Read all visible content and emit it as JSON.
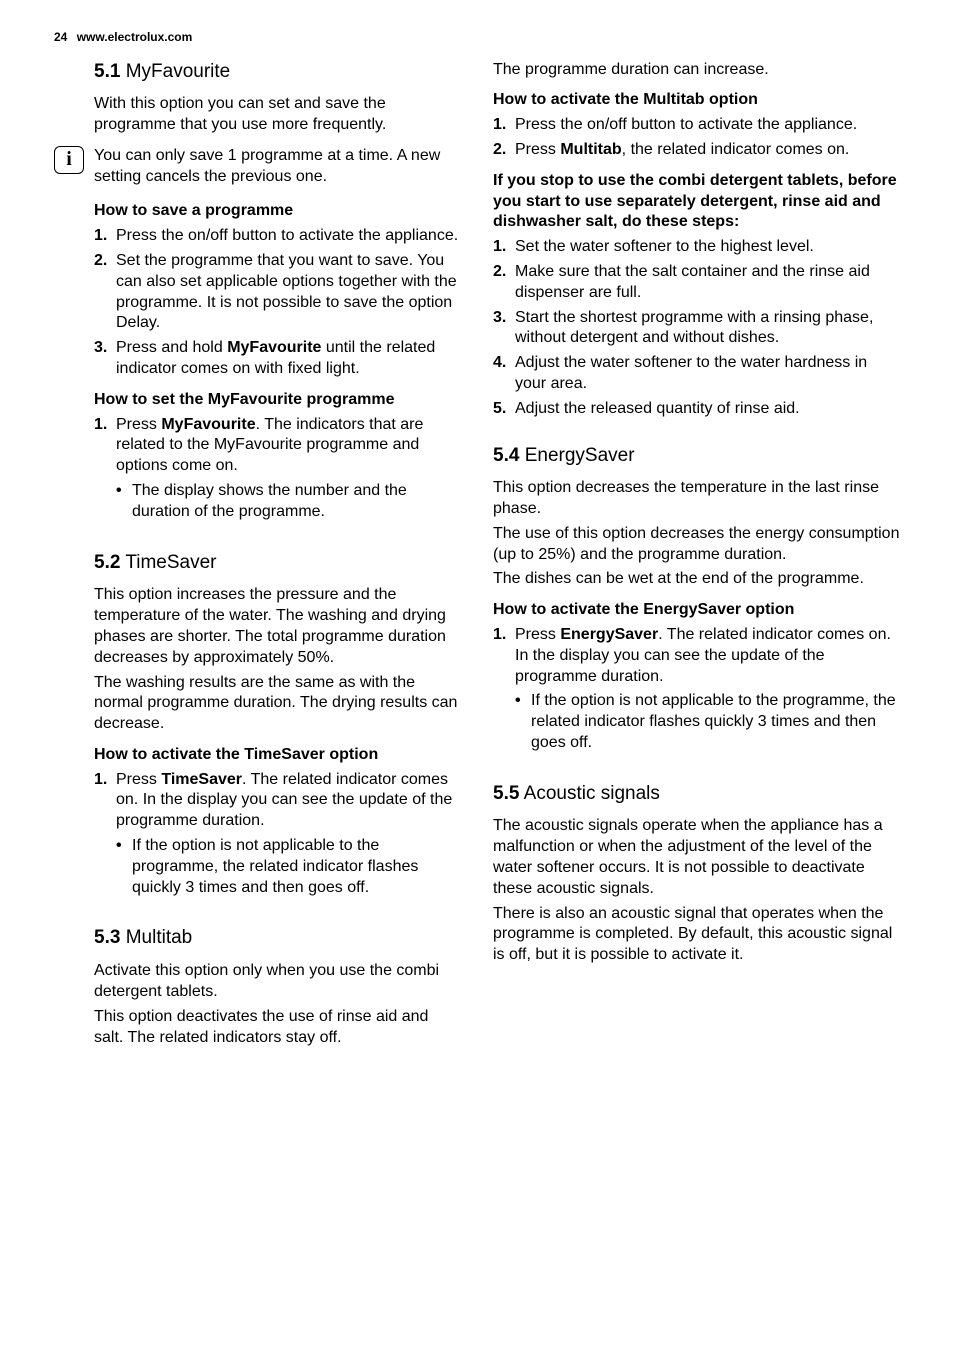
{
  "meta": {
    "page_number": "24",
    "site": "www.electrolux.com",
    "font_family": "Helvetica, Arial, sans-serif",
    "body_fontsize_pt": 12,
    "heading_fontsize_pt": 14,
    "text_color": "#000000",
    "background_color": "#ffffff"
  },
  "s51": {
    "num": "5.1",
    "title": "MyFavourite",
    "intro": "With this option you can set and save the programme that you use more frequently.",
    "info": "You can only save 1 programme at a time. A new setting cancels the previous one.",
    "h_save": "How to save a programme",
    "save_steps": {
      "m1": "1.",
      "t1": "Press the on/off button to activate the appliance.",
      "m2": "2.",
      "t2": "Set the programme that you want to save. You can also set applicable options together with the programme. It is not possible to save the option Delay.",
      "m3": "3.",
      "t3a": "Press and hold ",
      "t3_bold": "MyFavourite",
      "t3b": " until the related indicator comes on with fixed light."
    },
    "h_set": "How to set the MyFavourite programme",
    "set_steps": {
      "m1": "1.",
      "t1a": "Press ",
      "t1_bold": "MyFavourite",
      "t1b": ". The indicators that are related to the MyFavourite programme and options come on.",
      "bullet1": "The display shows the number and the duration of the programme."
    }
  },
  "s52": {
    "num": "5.2",
    "title": "TimeSaver",
    "p1": "This option increases the pressure and the temperature of the water. The washing and drying phases are shorter. The total programme duration decreases by approximately 50%.",
    "p2": "The washing results are the same as with the normal programme duration. The drying results can decrease.",
    "h_act": "How to activate the TimeSaver option",
    "steps": {
      "m1": "1.",
      "t1a": "Press ",
      "t1_bold": "TimeSaver",
      "t1b": ". The related indicator comes on. In the display you can see the update of the programme duration.",
      "bullet1": "If the option is not applicable to the programme, the related indicator flashes quickly 3 times and then goes off."
    }
  },
  "s53": {
    "num": "5.3",
    "title": "Multitab",
    "p1": "Activate this option only when you use the combi detergent tablets.",
    "p2": "This option deactivates the use of rinse aid and salt. The related indicators stay off.",
    "p3": "The programme duration can increase.",
    "h_act": "How to activate the Multitab option",
    "steps": {
      "m1": "1.",
      "t1": "Press the on/off button to activate the appliance.",
      "m2": "2.",
      "t2a": "Press ",
      "t2_bold": "Multitab",
      "t2b": ", the related indicator comes on."
    },
    "h_stop": "If you stop to use the combi detergent tablets, before you start to use separately detergent, rinse aid and dishwasher salt, do these steps:",
    "stop_steps": {
      "m1": "1.",
      "t1": "Set the water softener to the highest level.",
      "m2": "2.",
      "t2": "Make sure that the salt container and the rinse aid dispenser are full.",
      "m3": "3.",
      "t3": "Start the shortest programme with a rinsing phase, without detergent and without dishes.",
      "m4": "4.",
      "t4": "Adjust the water softener to the water hardness in your area.",
      "m5": "5.",
      "t5": "Adjust the released quantity of rinse aid."
    }
  },
  "s54": {
    "num": "5.4",
    "title": "EnergySaver",
    "p1": "This option decreases the temperature in the last rinse phase.",
    "p2": "The use of this option decreases the energy consumption (up to 25%) and the programme duration.",
    "p3": "The dishes can be wet at the end of the programme.",
    "h_act": "How to activate the EnergySaver option",
    "steps": {
      "m1": "1.",
      "t1a": "Press ",
      "t1_bold": "EnergySaver",
      "t1b": ". The related indicator comes on. In the display you can see the update of the programme duration.",
      "bullet1": "If the option is not applicable to the programme, the related indicator flashes quickly 3 times and then goes off."
    }
  },
  "s55": {
    "num": "5.5",
    "title": "Acoustic signals",
    "p1": "The acoustic signals operate when the appliance has a malfunction or when the adjustment of the level of the water softener occurs. It is not possible to deactivate these acoustic signals.",
    "p2": "There is also an acoustic signal that operates when the programme is completed. By default, this acoustic signal is off, but it is possible to activate it."
  }
}
